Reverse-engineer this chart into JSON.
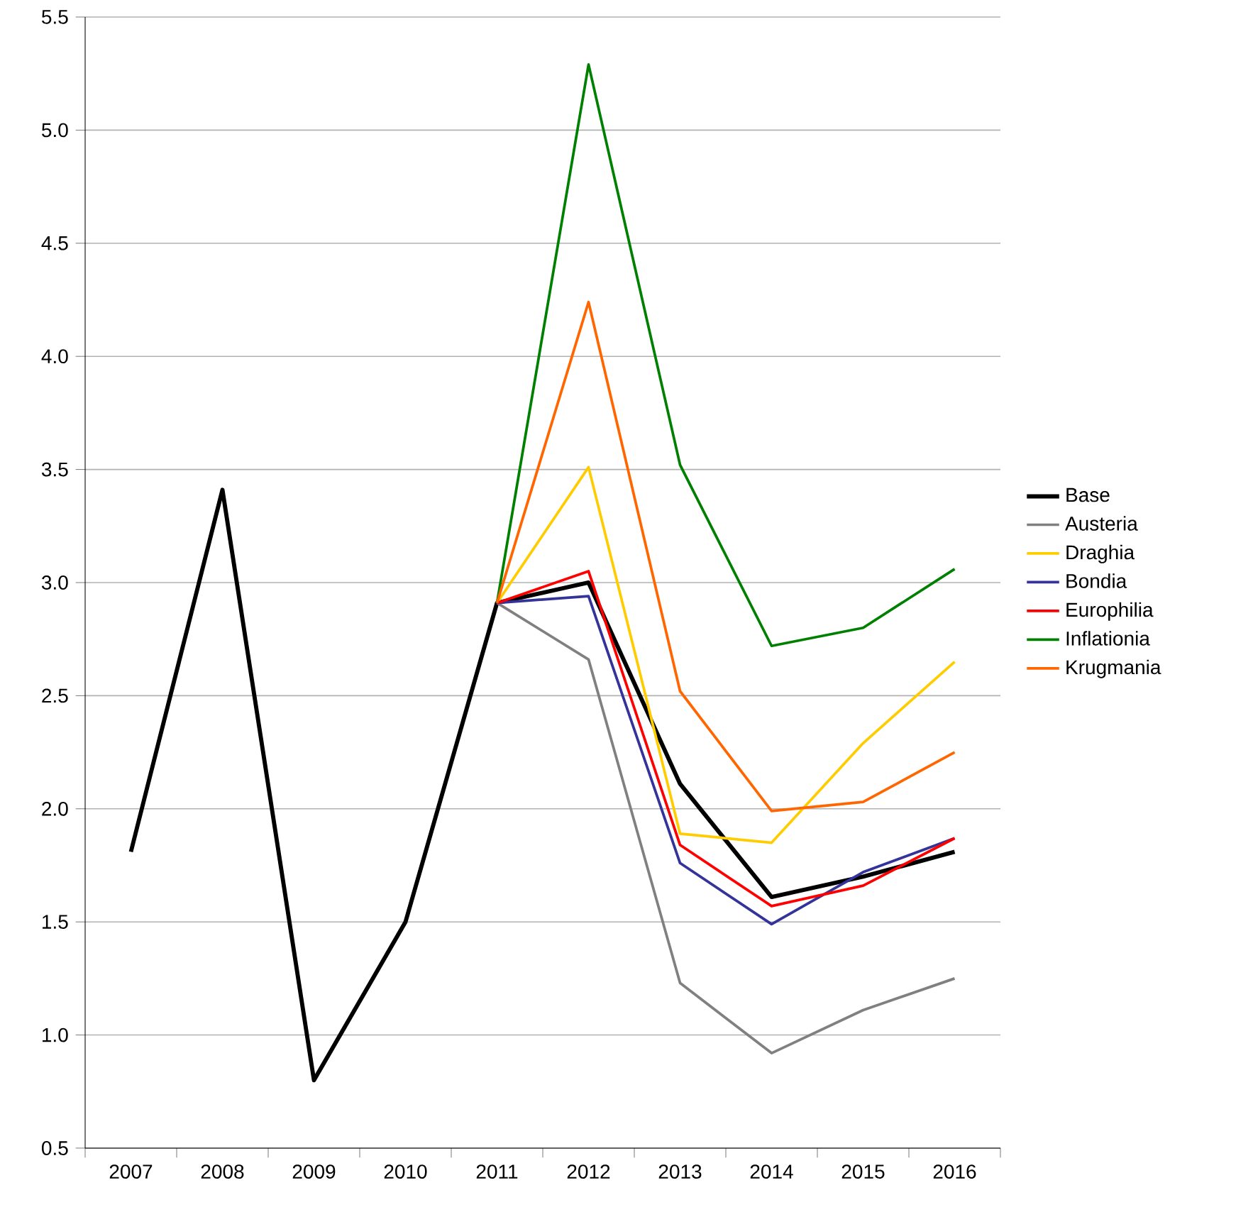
{
  "chart_data": {
    "type": "line",
    "categories": [
      "2007",
      "2008",
      "2009",
      "2010",
      "2011",
      "2012",
      "2013",
      "2014",
      "2015",
      "2016"
    ],
    "series": [
      {
        "name": "Base",
        "color": "#000000",
        "values": [
          1.81,
          3.41,
          0.8,
          1.5,
          2.91,
          3.0,
          2.11,
          1.61,
          1.7,
          1.81
        ]
      },
      {
        "name": "Austeria",
        "color": "#808080",
        "values": [
          null,
          null,
          null,
          null,
          2.91,
          2.66,
          1.23,
          0.92,
          1.11,
          1.25
        ]
      },
      {
        "name": "Draghia",
        "color": "#ffcc00",
        "values": [
          null,
          null,
          null,
          null,
          2.91,
          3.51,
          1.89,
          1.85,
          2.29,
          2.65
        ]
      },
      {
        "name": "Bondia",
        "color": "#333399",
        "values": [
          null,
          null,
          null,
          null,
          2.91,
          2.94,
          1.76,
          1.49,
          1.72,
          1.87
        ]
      },
      {
        "name": "Europhilia",
        "color": "#ff0000",
        "values": [
          null,
          null,
          null,
          null,
          2.91,
          3.05,
          1.84,
          1.57,
          1.66,
          1.87
        ]
      },
      {
        "name": "Inflationia",
        "color": "#008000",
        "values": [
          null,
          null,
          null,
          null,
          2.91,
          5.29,
          3.52,
          2.72,
          2.8,
          3.06
        ]
      },
      {
        "name": "Krugmania",
        "color": "#ff6600",
        "values": [
          null,
          null,
          null,
          null,
          2.91,
          4.24,
          2.52,
          1.99,
          2.03,
          2.25
        ]
      }
    ],
    "ylim": [
      0.5,
      5.5
    ],
    "yticks": [
      {
        "value": 0.5,
        "label": "0.5"
      },
      {
        "value": 1.0,
        "label": "1.0"
      },
      {
        "value": 1.5,
        "label": "1.5"
      },
      {
        "value": 2.0,
        "label": "2.0"
      },
      {
        "value": 2.5,
        "label": "2.5"
      },
      {
        "value": 3.0,
        "label": "3.0"
      },
      {
        "value": 3.5,
        "label": "3.5"
      },
      {
        "value": 4.0,
        "label": "4.0"
      },
      {
        "value": 4.5,
        "label": "4.5"
      },
      {
        "value": 5.0,
        "label": "5.0"
      },
      {
        "value": 5.5,
        "label": "5.5"
      }
    ],
    "grid": "y",
    "legend": "right"
  }
}
